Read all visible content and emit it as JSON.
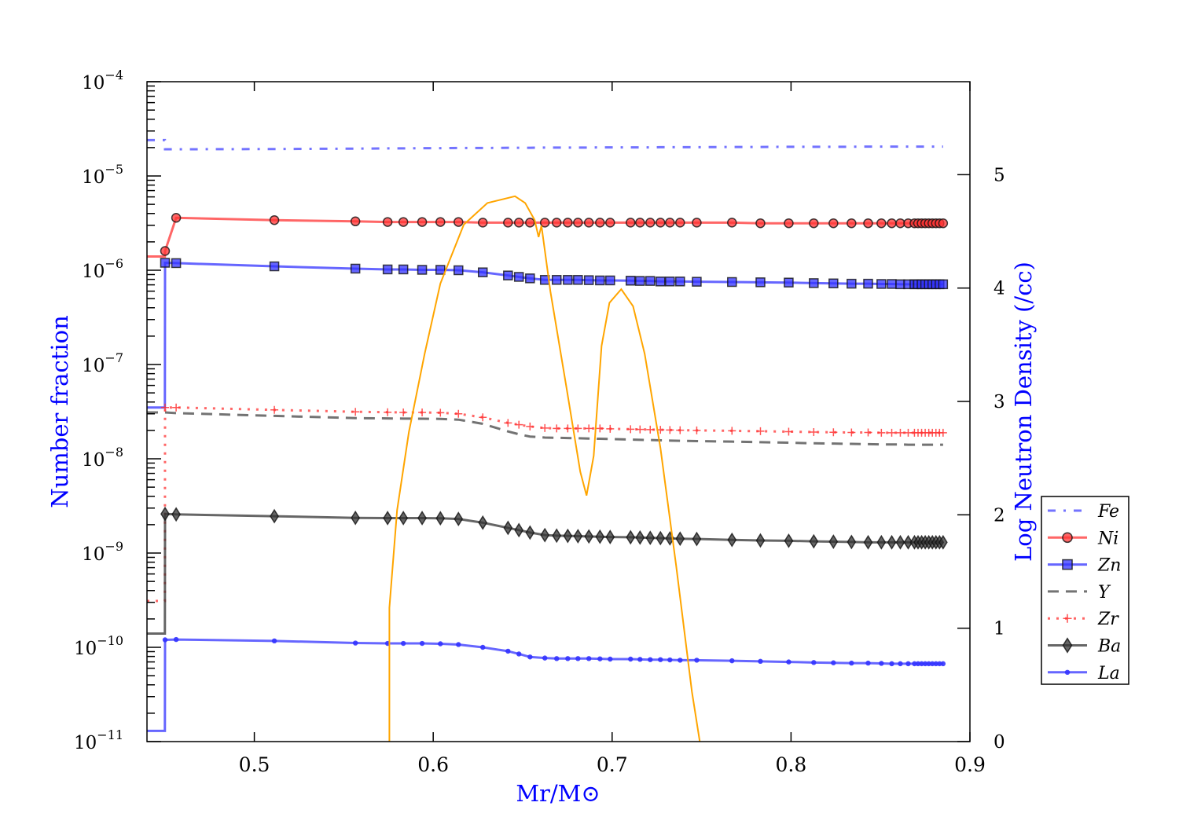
{
  "chart_data": {
    "type": "line",
    "title": "",
    "xlabel": "Mr/M⊙",
    "ylabel": "Number fraction",
    "y2label": "Log Neutron Density (/cc)",
    "xlim": [
      0.44,
      0.9
    ],
    "ylim": [
      1e-11,
      0.0001
    ],
    "yscale": "log",
    "y2lim": [
      0,
      5.82
    ],
    "grid": false,
    "legend_placement": "right-outside",
    "xticks": [
      "0.5",
      "0.6",
      "0.7",
      "0.8",
      "0.9"
    ],
    "xtick_values": [
      0.5,
      0.6,
      0.7,
      0.8,
      0.9
    ],
    "yticks": [
      {
        "base": "10",
        "exp": "−4",
        "value": -4
      },
      {
        "base": "10",
        "exp": "−5",
        "value": -5
      },
      {
        "base": "10",
        "exp": "−6",
        "value": -6
      },
      {
        "base": "10",
        "exp": "−7",
        "value": -7
      },
      {
        "base": "10",
        "exp": "−8",
        "value": -8
      },
      {
        "base": "10",
        "exp": "−9",
        "value": -9
      },
      {
        "base": "10",
        "exp": "−10",
        "value": -10
      },
      {
        "base": "10",
        "exp": "−11",
        "value": -11
      }
    ],
    "y2ticks": [
      "0",
      "1",
      "2",
      "3",
      "4",
      "5"
    ],
    "y2tick_values": [
      0,
      1,
      2,
      3,
      4,
      5
    ],
    "x": [
      0.4563,
      0.5112,
      0.5565,
      0.5745,
      0.5833,
      0.5938,
      0.604,
      0.6141,
      0.6277,
      0.6418,
      0.6479,
      0.6541,
      0.6624,
      0.669,
      0.6752,
      0.6809,
      0.687,
      0.6932,
      0.6989,
      0.7103,
      0.7156,
      0.7213,
      0.727,
      0.7323,
      0.738,
      0.7473,
      0.767,
      0.7829,
      0.7987,
      0.8127,
      0.8237,
      0.8338,
      0.8431,
      0.8505,
      0.8563,
      0.8611,
      0.8655,
      0.869,
      0.871,
      0.873,
      0.875,
      0.877,
      0.879,
      0.881,
      0.883,
      0.885
    ],
    "series": [
      {
        "name": "Fe",
        "color": "#4444ff",
        "style": "dashdot",
        "marker": "none",
        "inner": 2.4e-05,
        "spike": 1.92e-05,
        "values": [
          1.92e-05,
          1.93e-05,
          1.95e-05,
          1.96e-05,
          1.96e-05,
          1.97e-05,
          1.97e-05,
          1.98e-05,
          1.98e-05,
          1.99e-05,
          1.99e-05,
          1.99e-05,
          2e-05,
          2e-05,
          2e-05,
          2e-05,
          2e-05,
          2.01e-05,
          2.01e-05,
          2.01e-05,
          2.01e-05,
          2.01e-05,
          2.02e-05,
          2.02e-05,
          2.02e-05,
          2.02e-05,
          2.03e-05,
          2.03e-05,
          2.04e-05,
          2.04e-05,
          2.04e-05,
          2.04e-05,
          2.05e-05,
          2.05e-05,
          2.05e-05,
          2.05e-05,
          2.05e-05,
          2.05e-05,
          2.05e-05,
          2.05e-05,
          2.05e-05,
          2.05e-05,
          2.05e-05,
          2.05e-05,
          2.05e-05,
          2.05e-05
        ]
      },
      {
        "name": "Ni",
        "color": "#ff3333",
        "style": "solid",
        "marker": "circle",
        "inner": 1.4e-06,
        "spike": 1.6e-06,
        "values": [
          3.6e-06,
          3.4e-06,
          3.3e-06,
          3.25e-06,
          3.25e-06,
          3.25e-06,
          3.25e-06,
          3.25e-06,
          3.2e-06,
          3.2e-06,
          3.2e-06,
          3.2e-06,
          3.2e-06,
          3.2e-06,
          3.2e-06,
          3.2e-06,
          3.2e-06,
          3.2e-06,
          3.2e-06,
          3.2e-06,
          3.2e-06,
          3.2e-06,
          3.2e-06,
          3.2e-06,
          3.2e-06,
          3.2e-06,
          3.2e-06,
          3.15e-06,
          3.15e-06,
          3.15e-06,
          3.15e-06,
          3.15e-06,
          3.15e-06,
          3.15e-06,
          3.15e-06,
          3.15e-06,
          3.15e-06,
          3.15e-06,
          3.15e-06,
          3.15e-06,
          3.15e-06,
          3.15e-06,
          3.15e-06,
          3.15e-06,
          3.15e-06,
          3.15e-06
        ]
      },
      {
        "name": "Zn",
        "color": "#3333ff",
        "style": "solid",
        "marker": "square",
        "inner": 3.5e-08,
        "spike": 1.2e-06,
        "values": [
          1.19e-06,
          1.1e-06,
          1.04e-06,
          1.02e-06,
          1.02e-06,
          1.01e-06,
          1.01e-06,
          1e-06,
          9.5e-07,
          8.8e-07,
          8.5e-07,
          8.2e-07,
          7.9e-07,
          7.9e-07,
          7.9e-07,
          7.9e-07,
          7.85e-07,
          7.8e-07,
          7.8e-07,
          7.75e-07,
          7.7e-07,
          7.7e-07,
          7.6e-07,
          7.6e-07,
          7.6e-07,
          7.55e-07,
          7.5e-07,
          7.45e-07,
          7.4e-07,
          7.3e-07,
          7.25e-07,
          7.2e-07,
          7.2e-07,
          7.15e-07,
          7.15e-07,
          7.1e-07,
          7.1e-07,
          7.1e-07,
          7.1e-07,
          7.1e-07,
          7.1e-07,
          7.1e-07,
          7.1e-07,
          7.1e-07,
          7.1e-07,
          7.1e-07
        ]
      },
      {
        "name": "Y",
        "color": "#444444",
        "style": "dashed",
        "marker": "none",
        "inner": 3.1e-08,
        "spike": 3.1e-08,
        "values": [
          3.05e-08,
          2.85e-08,
          2.7e-08,
          2.68e-08,
          2.67e-08,
          2.66e-08,
          2.65e-08,
          2.6e-08,
          2.35e-08,
          1.95e-08,
          1.82e-08,
          1.72e-08,
          1.68e-08,
          1.67e-08,
          1.66e-08,
          1.65e-08,
          1.64e-08,
          1.63e-08,
          1.62e-08,
          1.6e-08,
          1.59e-08,
          1.58e-08,
          1.57e-08,
          1.56e-08,
          1.55e-08,
          1.54e-08,
          1.52e-08,
          1.5e-08,
          1.48e-08,
          1.46e-08,
          1.45e-08,
          1.44e-08,
          1.43e-08,
          1.42e-08,
          1.42e-08,
          1.42e-08,
          1.41e-08,
          1.41e-08,
          1.41e-08,
          1.41e-08,
          1.41e-08,
          1.41e-08,
          1.41e-08,
          1.41e-08,
          1.41e-08,
          1.41e-08
        ]
      },
      {
        "name": "Zr",
        "color": "#ff3333",
        "style": "dotted",
        "marker": "plus",
        "inner": 3.1e-10,
        "spike": 3.5e-08,
        "values": [
          3.5e-08,
          3.3e-08,
          3.15e-08,
          3.12e-08,
          3.1e-08,
          3.1e-08,
          3.08e-08,
          3e-08,
          2.75e-08,
          2.4e-08,
          2.3e-08,
          2.2e-08,
          2.12e-08,
          2.1e-08,
          2.1e-08,
          2.1e-08,
          2.1e-08,
          2.1e-08,
          2.08e-08,
          2.06e-08,
          2.05e-08,
          2.04e-08,
          2.03e-08,
          2.02e-08,
          2.01e-08,
          2e-08,
          1.98e-08,
          1.96e-08,
          1.94e-08,
          1.92e-08,
          1.91e-08,
          1.9e-08,
          1.9e-08,
          1.89e-08,
          1.89e-08,
          1.89e-08,
          1.89e-08,
          1.89e-08,
          1.89e-08,
          1.89e-08,
          1.89e-08,
          1.89e-08,
          1.89e-08,
          1.89e-08,
          1.89e-08,
          1.89e-08
        ]
      },
      {
        "name": "Ba",
        "color": "#333333",
        "style": "solid",
        "marker": "diamond",
        "inner": 1.4e-10,
        "spike": 2.6e-09,
        "values": [
          2.57e-09,
          2.46e-09,
          2.36e-09,
          2.35e-09,
          2.35e-09,
          2.35e-09,
          2.34e-09,
          2.3e-09,
          2.1e-09,
          1.85e-09,
          1.75e-09,
          1.65e-09,
          1.55e-09,
          1.53e-09,
          1.52e-09,
          1.51e-09,
          1.5e-09,
          1.49e-09,
          1.48e-09,
          1.47e-09,
          1.46e-09,
          1.45e-09,
          1.44e-09,
          1.43e-09,
          1.42e-09,
          1.41e-09,
          1.38e-09,
          1.36e-09,
          1.35e-09,
          1.33e-09,
          1.32e-09,
          1.31e-09,
          1.3e-09,
          1.3e-09,
          1.3e-09,
          1.3e-09,
          1.3e-09,
          1.3e-09,
          1.3e-09,
          1.3e-09,
          1.3e-09,
          1.3e-09,
          1.3e-09,
          1.3e-09,
          1.3e-09,
          1.3e-09
        ]
      },
      {
        "name": "La",
        "color": "#3333ff",
        "style": "solid",
        "marker": "dot",
        "inner": 1.3e-11,
        "spike": 1.2e-10,
        "values": [
          1.21e-10,
          1.17e-10,
          1.11e-10,
          1.1e-10,
          1.1e-10,
          1.1e-10,
          1.09e-10,
          1.07e-10,
          1e-10,
          9.1e-11,
          8.5e-11,
          7.9e-11,
          7.7e-11,
          7.6e-11,
          7.6e-11,
          7.6e-11,
          7.6e-11,
          7.55e-11,
          7.5e-11,
          7.5e-11,
          7.45e-11,
          7.4e-11,
          7.4e-11,
          7.35e-11,
          7.3e-11,
          7.3e-11,
          7.2e-11,
          7.1e-11,
          7e-11,
          6.9e-11,
          6.85e-11,
          6.8e-11,
          6.8e-11,
          6.75e-11,
          6.7e-11,
          6.7e-11,
          6.7e-11,
          6.7e-11,
          6.7e-11,
          6.7e-11,
          6.7e-11,
          6.7e-11,
          6.7e-11,
          6.7e-11,
          6.7e-11,
          6.7e-11
        ]
      }
    ],
    "neutron_density": {
      "name": "Log Neutron Density",
      "color": "#ffa500",
      "axis": "right",
      "points": [
        [
          0.5755,
          0
        ],
        [
          0.5755,
          1.18
        ],
        [
          0.5798,
          2.04
        ],
        [
          0.5864,
          2.73
        ],
        [
          0.5952,
          3.42
        ],
        [
          0.604,
          4.04
        ],
        [
          0.6171,
          4.56
        ],
        [
          0.6303,
          4.75
        ],
        [
          0.6457,
          4.81
        ],
        [
          0.6514,
          4.75
        ],
        [
          0.6567,
          4.6
        ],
        [
          0.6589,
          4.45
        ],
        [
          0.6605,
          4.55
        ],
        [
          0.6655,
          3.97
        ],
        [
          0.6743,
          3.14
        ],
        [
          0.6822,
          2.38
        ],
        [
          0.6857,
          2.17
        ],
        [
          0.6897,
          2.52
        ],
        [
          0.6941,
          3.49
        ],
        [
          0.6985,
          3.87
        ],
        [
          0.7051,
          3.99
        ],
        [
          0.7117,
          3.84
        ],
        [
          0.7182,
          3.42
        ],
        [
          0.727,
          2.59
        ],
        [
          0.7358,
          1.55
        ],
        [
          0.7446,
          0.44
        ],
        [
          0.749,
          0
        ]
      ]
    }
  }
}
